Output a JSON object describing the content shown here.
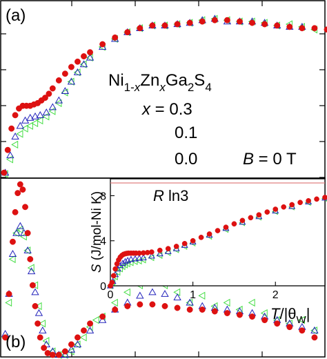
{
  "figure": {
    "panel_a_label": "(a)",
    "panel_b_label": "(b)",
    "compound": {
      "base": "Ni",
      "sub1": "1-",
      "x1": "x",
      "zn": "Zn",
      "x2": "x",
      "ga": "Ga",
      "sub2": "2",
      "s": "S",
      "sub3": "4"
    },
    "field_label": {
      "b": "B",
      "rest": " = 0 T"
    },
    "colors": {
      "x03": "#44dd44",
      "x01": "#2222bb",
      "x00": "#dd1111",
      "ref_line": "#e08080"
    }
  },
  "chart_data": [
    {
      "panel": "a",
      "type": "scatter",
      "ylim": [
        0,
        1.3
      ],
      "xlim": [
        0,
        2.6
      ],
      "series": [
        {
          "name": "x = 0.3",
          "marker": "triangle-left",
          "color": "#44dd44",
          "x": [
            0.02,
            0.06,
            0.1,
            0.14,
            0.18,
            0.22,
            0.26,
            0.3,
            0.35,
            0.4,
            0.45,
            0.5,
            0.55,
            0.6,
            0.65,
            0.7,
            0.8,
            0.9,
            1.0,
            1.1,
            1.2,
            1.3,
            1.4,
            1.5,
            1.6,
            1.7,
            1.8,
            1.9,
            2.0,
            2.1,
            2.2,
            2.3,
            2.4,
            2.5
          ],
          "y": [
            0.02,
            0.13,
            0.24,
            0.32,
            0.36,
            0.38,
            0.4,
            0.42,
            0.45,
            0.49,
            0.55,
            0.63,
            0.71,
            0.78,
            0.84,
            0.89,
            0.97,
            1.03,
            1.08,
            1.11,
            1.13,
            1.13,
            1.14,
            1.15,
            1.17,
            1.18,
            1.17,
            1.16,
            1.16,
            1.15,
            1.13,
            1.14,
            1.12,
            1.1
          ]
        },
        {
          "name": "x = 0.1",
          "marker": "triangle-up",
          "color": "#2222bb",
          "x": [
            0.02,
            0.06,
            0.1,
            0.14,
            0.18,
            0.22,
            0.26,
            0.3,
            0.35,
            0.4,
            0.45,
            0.5,
            0.55,
            0.6,
            0.65,
            0.7,
            0.8,
            0.9,
            1.0,
            1.1,
            1.2,
            1.3,
            1.4,
            1.5,
            1.6,
            1.7,
            1.8,
            1.9,
            2.0,
            2.1,
            2.2,
            2.3,
            2.4
          ],
          "y": [
            0.03,
            0.16,
            0.3,
            0.38,
            0.42,
            0.44,
            0.45,
            0.46,
            0.48,
            0.52,
            0.57,
            0.64,
            0.71,
            0.78,
            0.84,
            0.89,
            0.97,
            1.03,
            1.08,
            1.11,
            1.13,
            1.13,
            1.14,
            1.15,
            1.17,
            1.18,
            1.16,
            1.16,
            1.16,
            1.15,
            1.13,
            1.12,
            1.12
          ]
        },
        {
          "name": "x = 0.0",
          "marker": "circle",
          "color": "#dd1111",
          "x": [
            0.01,
            0.04,
            0.07,
            0.1,
            0.13,
            0.16,
            0.19,
            0.22,
            0.25,
            0.28,
            0.31,
            0.34,
            0.37,
            0.4,
            0.45,
            0.5,
            0.55,
            0.6,
            0.65,
            0.7,
            0.8,
            0.9,
            1.0,
            1.1,
            1.2,
            1.3,
            1.4,
            1.5,
            1.6,
            1.7,
            1.8,
            1.9,
            2.0,
            2.1,
            2.2,
            2.3,
            2.4,
            2.5,
            2.6
          ],
          "y": [
            0.03,
            0.2,
            0.36,
            0.46,
            0.51,
            0.53,
            0.53,
            0.53,
            0.54,
            0.55,
            0.57,
            0.59,
            0.62,
            0.66,
            0.72,
            0.77,
            0.82,
            0.86,
            0.9,
            0.93,
            0.99,
            1.04,
            1.08,
            1.11,
            1.13,
            1.13,
            1.14,
            1.15,
            1.16,
            1.17,
            1.17,
            1.16,
            1.15,
            1.14,
            1.13,
            1.12,
            1.11,
            1.11,
            1.1
          ]
        }
      ]
    },
    {
      "panel": "b",
      "type": "scatter",
      "ylim": [
        0,
        1
      ],
      "xlim": [
        0,
        2.6
      ],
      "series": [
        {
          "name": "x = 0.3",
          "marker": "triangle-left",
          "color": "#44dd44",
          "x": [
            0.02,
            0.05,
            0.08,
            0.11,
            0.14,
            0.17,
            0.2,
            0.23,
            0.26,
            0.29,
            0.32,
            0.35,
            0.4,
            0.45,
            0.5,
            0.55,
            0.6,
            0.65,
            0.7,
            0.75,
            0.8,
            0.9,
            1.0,
            1.1,
            1.2,
            1.3,
            1.4,
            1.5,
            1.6,
            1.7,
            1.8,
            1.9,
            2.0,
            2.1,
            2.2,
            2.3,
            2.4,
            2.5
          ],
          "y": [
            0.1,
            0.3,
            0.55,
            0.7,
            0.72,
            0.68,
            0.6,
            0.5,
            0.4,
            0.28,
            0.18,
            0.08,
            0.02,
            0.0,
            0.0,
            0.02,
            0.06,
            0.1,
            0.16,
            0.2,
            0.22,
            0.3,
            0.36,
            0.4,
            0.42,
            0.4,
            0.36,
            0.3,
            0.34,
            0.28,
            0.3,
            0.26,
            0.3,
            0.24,
            0.2,
            0.18,
            0.2,
            0.14
          ]
        },
        {
          "name": "x = 0.1",
          "marker": "triangle-up",
          "color": "#2222bb",
          "x": [
            0.02,
            0.05,
            0.08,
            0.11,
            0.14,
            0.17,
            0.2,
            0.23,
            0.26,
            0.29,
            0.32,
            0.35,
            0.4,
            0.45,
            0.5,
            0.55,
            0.6,
            0.7,
            0.8,
            0.9,
            1.0,
            1.1,
            1.2,
            1.3,
            1.4,
            1.5,
            1.6,
            1.7,
            1.8,
            1.9,
            2.0,
            2.1,
            2.2,
            2.3,
            2.4,
            2.5
          ],
          "y": [
            0.12,
            0.35,
            0.58,
            0.7,
            0.74,
            0.7,
            0.6,
            0.48,
            0.36,
            0.24,
            0.14,
            0.06,
            0.02,
            0.0,
            0.0,
            0.03,
            0.06,
            0.14,
            0.2,
            0.26,
            0.3,
            0.34,
            0.36,
            0.35,
            0.33,
            0.3,
            0.28,
            0.27,
            0.26,
            0.25,
            0.24,
            0.22,
            0.2,
            0.18,
            0.16,
            0.14
          ]
        },
        {
          "name": "x = 0.0",
          "marker": "circle",
          "color": "#dd1111",
          "x": [
            0.02,
            0.05,
            0.08,
            0.1,
            0.12,
            0.14,
            0.16,
            0.18,
            0.2,
            0.22,
            0.24,
            0.26,
            0.28,
            0.3,
            0.33,
            0.36,
            0.4,
            0.45,
            0.5,
            0.55,
            0.6,
            0.65,
            0.7,
            0.8,
            0.9,
            1.0,
            1.1,
            1.2,
            1.3,
            1.4,
            1.5,
            1.6,
            1.7,
            1.8,
            1.9,
            2.0,
            2.1,
            2.2,
            2.3,
            2.4,
            2.5
          ],
          "y": [
            0.1,
            0.35,
            0.65,
            0.82,
            0.93,
            0.98,
            0.95,
            0.85,
            0.7,
            0.55,
            0.4,
            0.28,
            0.18,
            0.1,
            0.04,
            0.01,
            0.0,
            0.0,
            0.02,
            0.06,
            0.1,
            0.14,
            0.18,
            0.22,
            0.26,
            0.28,
            0.29,
            0.29,
            0.28,
            0.27,
            0.26,
            0.26,
            0.25,
            0.24,
            0.23,
            0.22,
            0.2,
            0.18,
            0.16,
            0.14,
            0.1
          ]
        }
      ]
    },
    {
      "panel": "b-inset",
      "type": "scatter",
      "xlabel_var": "T",
      "xlabel_rest": "/|θ",
      "xlabel_sub": "W",
      "xlabel_end": "|",
      "ylabel_var": "S",
      "ylabel_rest": " (J/mol-Ni K)",
      "reference_label_r": "R",
      "reference_label_rest": " ln3",
      "reference_value": 9.13,
      "xlim": [
        0,
        2.6
      ],
      "ylim": [
        0,
        9.5
      ],
      "x_ticks": [
        "0",
        "1",
        "2"
      ],
      "y_ticks": [
        "0",
        "4",
        "8"
      ],
      "series": [
        {
          "name": "x = 0.3",
          "marker": "triangle-left",
          "color": "#44dd44",
          "x": [
            0.0,
            0.03,
            0.06,
            0.09,
            0.12,
            0.15,
            0.18,
            0.21,
            0.25,
            0.3,
            0.35,
            0.4,
            0.5,
            0.6,
            0.7,
            0.8,
            0.9,
            1.0,
            1.2,
            1.4,
            1.6,
            1.8,
            2.0,
            2.2,
            2.4,
            2.6
          ],
          "y": [
            0.0,
            0.3,
            0.8,
            1.2,
            1.5,
            1.7,
            1.85,
            1.95,
            2.05,
            2.15,
            2.2,
            2.3,
            2.5,
            2.7,
            2.95,
            3.2,
            3.5,
            3.8,
            4.4,
            5.0,
            5.6,
            6.1,
            6.6,
            7.0,
            7.4,
            7.75
          ]
        },
        {
          "name": "x = 0.1",
          "marker": "triangle-up",
          "color": "#2222bb",
          "x": [
            0.0,
            0.03,
            0.06,
            0.09,
            0.12,
            0.15,
            0.18,
            0.21,
            0.25,
            0.3,
            0.35,
            0.4,
            0.5,
            0.6,
            0.7,
            0.8,
            0.9,
            1.0,
            1.2,
            1.4,
            1.6,
            1.8,
            2.0,
            2.2,
            2.4,
            2.6
          ],
          "y": [
            0.0,
            0.4,
            1.0,
            1.5,
            1.8,
            2.0,
            2.15,
            2.25,
            2.35,
            2.4,
            2.45,
            2.5,
            2.65,
            2.85,
            3.05,
            3.3,
            3.6,
            3.9,
            4.5,
            5.1,
            5.65,
            6.15,
            6.65,
            7.05,
            7.45,
            7.8
          ]
        },
        {
          "name": "x = 0.0",
          "marker": "circle",
          "color": "#dd1111",
          "x": [
            0.0,
            0.02,
            0.04,
            0.06,
            0.08,
            0.1,
            0.12,
            0.14,
            0.16,
            0.18,
            0.2,
            0.22,
            0.25,
            0.28,
            0.31,
            0.35,
            0.4,
            0.45,
            0.5,
            0.6,
            0.7,
            0.8,
            0.9,
            1.0,
            1.1,
            1.2,
            1.3,
            1.4,
            1.5,
            1.6,
            1.7,
            1.8,
            1.9,
            2.0,
            2.1,
            2.2,
            2.3,
            2.4,
            2.5,
            2.6
          ],
          "y": [
            0.0,
            0.3,
            0.9,
            1.5,
            1.95,
            2.3,
            2.55,
            2.7,
            2.8,
            2.85,
            2.88,
            2.9,
            2.9,
            2.9,
            2.9,
            2.9,
            2.92,
            2.95,
            3.0,
            3.15,
            3.3,
            3.5,
            3.75,
            4.0,
            4.3,
            4.6,
            4.9,
            5.2,
            5.5,
            5.8,
            6.05,
            6.3,
            6.55,
            6.8,
            7.0,
            7.2,
            7.4,
            7.55,
            7.7,
            7.85
          ]
        }
      ]
    }
  ]
}
